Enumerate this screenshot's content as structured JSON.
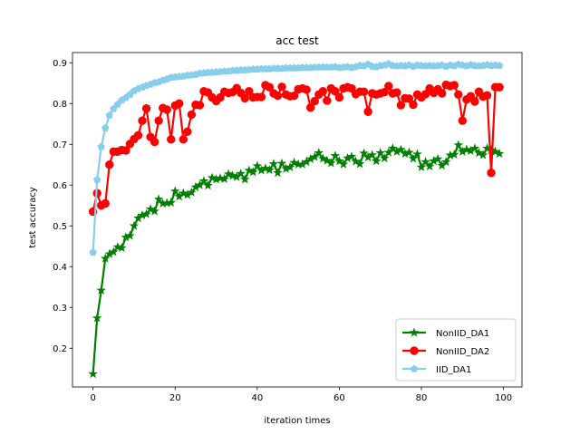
{
  "chart_data": {
    "type": "line",
    "title": "acc test",
    "xlabel": "iteration times",
    "ylabel": "test accuracy",
    "xlim": [
      -5,
      104.5
    ],
    "ylim": [
      0.105,
      0.925
    ],
    "xticks": [
      0,
      20,
      40,
      60,
      80,
      100
    ],
    "yticks": [
      0.2,
      0.3,
      0.4,
      0.5,
      0.6,
      0.7,
      0.8,
      0.9
    ],
    "grid": false,
    "legend_position": "lower-right",
    "series": [
      {
        "name": "NonIID_DA1",
        "color": "#008000",
        "marker": "star",
        "y": [
          0.137,
          0.274,
          0.342,
          0.42,
          0.431,
          0.436,
          0.448,
          0.446,
          0.472,
          0.476,
          0.5,
          0.519,
          0.526,
          0.529,
          0.541,
          0.536,
          0.565,
          0.555,
          0.556,
          0.557,
          0.585,
          0.572,
          0.58,
          0.576,
          0.582,
          0.595,
          0.6,
          0.61,
          0.599,
          0.618,
          0.614,
          0.617,
          0.615,
          0.627,
          0.623,
          0.62,
          0.628,
          0.614,
          0.636,
          0.632,
          0.647,
          0.636,
          0.641,
          0.637,
          0.652,
          0.63,
          0.653,
          0.64,
          0.644,
          0.655,
          0.651,
          0.651,
          0.657,
          0.664,
          0.669,
          0.679,
          0.665,
          0.66,
          0.654,
          0.672,
          0.659,
          0.651,
          0.666,
          0.67,
          0.658,
          0.652,
          0.678,
          0.668,
          0.674,
          0.659,
          0.679,
          0.666,
          0.68,
          0.69,
          0.682,
          0.687,
          0.677,
          0.68,
          0.665,
          0.676,
          0.644,
          0.657,
          0.646,
          0.659,
          0.664,
          0.648,
          0.657,
          0.673,
          0.675,
          0.698,
          0.682,
          0.687,
          0.684,
          0.69,
          0.679,
          0.674,
          0.69,
          0.686,
          0.682,
          0.677
        ]
      },
      {
        "name": "NonIID_DA2",
        "color": "#ff0000",
        "marker": "circle",
        "y": [
          0.535,
          0.58,
          0.55,
          0.555,
          0.65,
          0.682,
          0.682,
          0.686,
          0.685,
          0.701,
          0.713,
          0.722,
          0.758,
          0.788,
          0.718,
          0.706,
          0.758,
          0.789,
          0.785,
          0.712,
          0.795,
          0.8,
          0.712,
          0.731,
          0.773,
          0.797,
          0.796,
          0.83,
          0.827,
          0.815,
          0.806,
          0.815,
          0.829,
          0.826,
          0.828,
          0.838,
          0.826,
          0.813,
          0.83,
          0.815,
          0.816,
          0.816,
          0.845,
          0.84,
          0.825,
          0.819,
          0.841,
          0.822,
          0.818,
          0.819,
          0.835,
          0.837,
          0.834,
          0.79,
          0.806,
          0.822,
          0.83,
          0.807,
          0.837,
          0.83,
          0.815,
          0.837,
          0.84,
          0.837,
          0.823,
          0.829,
          0.829,
          0.78,
          0.825,
          0.822,
          0.825,
          0.828,
          0.843,
          0.825,
          0.827,
          0.796,
          0.813,
          0.812,
          0.797,
          0.822,
          0.815,
          0.823,
          0.837,
          0.826,
          0.835,
          0.825,
          0.846,
          0.843,
          0.845,
          0.822,
          0.758,
          0.81,
          0.818,
          0.805,
          0.829,
          0.817,
          0.82,
          0.63,
          0.84,
          0.84
        ]
      },
      {
        "name": "IID_DA1",
        "color": "#87ceeb",
        "marker": "pentagon",
        "y": [
          0.435,
          0.613,
          0.694,
          0.74,
          0.771,
          0.787,
          0.798,
          0.808,
          0.814,
          0.822,
          0.831,
          0.836,
          0.84,
          0.844,
          0.847,
          0.851,
          0.853,
          0.857,
          0.86,
          0.864,
          0.865,
          0.866,
          0.867,
          0.869,
          0.87,
          0.871,
          0.874,
          0.875,
          0.876,
          0.876,
          0.877,
          0.878,
          0.879,
          0.879,
          0.881,
          0.881,
          0.882,
          0.882,
          0.883,
          0.884,
          0.884,
          0.885,
          0.885,
          0.885,
          0.886,
          0.886,
          0.886,
          0.887,
          0.887,
          0.887,
          0.887,
          0.888,
          0.888,
          0.888,
          0.889,
          0.889,
          0.889,
          0.889,
          0.889,
          0.89,
          0.888,
          0.889,
          0.89,
          0.888,
          0.89,
          0.893,
          0.892,
          0.896,
          0.891,
          0.89,
          0.893,
          0.894,
          0.897,
          0.893,
          0.892,
          0.893,
          0.892,
          0.894,
          0.891,
          0.894,
          0.893,
          0.892,
          0.893,
          0.892,
          0.893,
          0.894,
          0.891,
          0.894,
          0.892,
          0.896,
          0.894,
          0.892,
          0.895,
          0.893,
          0.892,
          0.893,
          0.895,
          0.893,
          0.894,
          0.893
        ]
      }
    ]
  }
}
